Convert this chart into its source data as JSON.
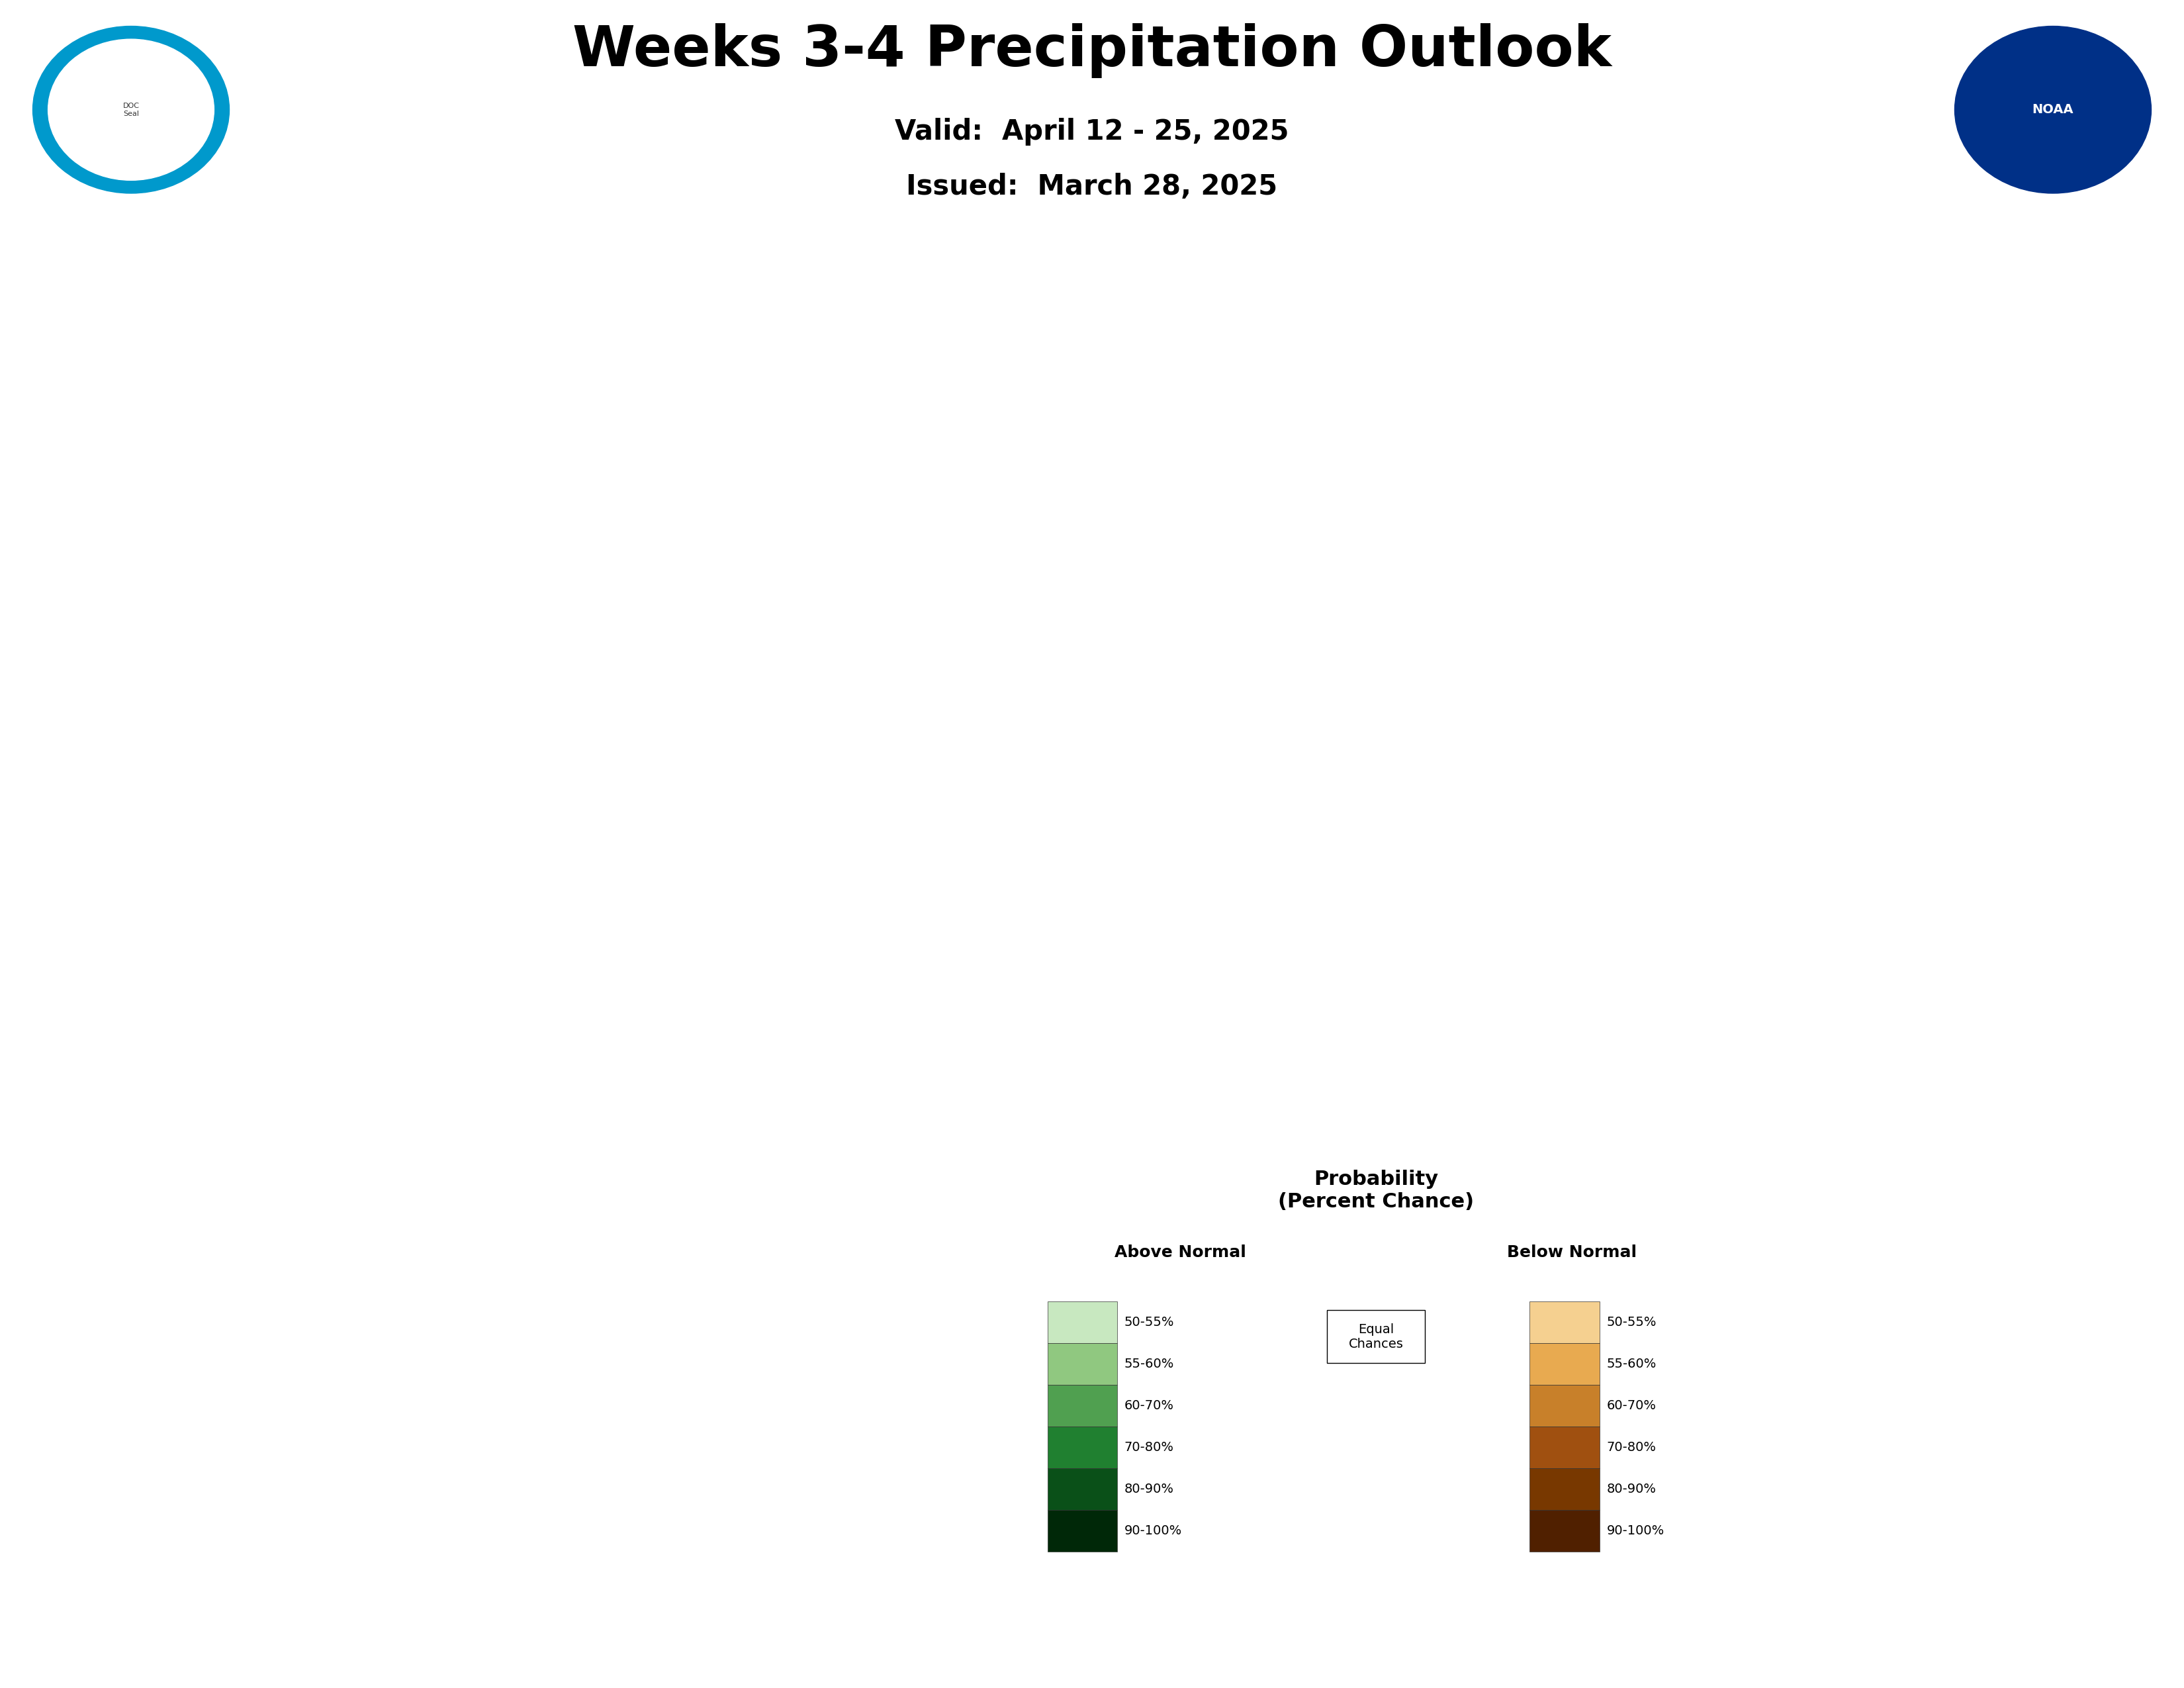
{
  "title": "Weeks 3-4 Precipitation Outlook",
  "valid_line": "Valid:  April 12 - 25, 2025",
  "issued_line": "Issued:  March 28, 2025",
  "title_fontsize": 62,
  "subtitle_fontsize": 30,
  "background_color": "#ffffff",
  "colors": {
    "below_55": "#f5d090",
    "below_60": "#e8aa50",
    "below_70": "#c8802a",
    "below_80": "#a05010",
    "below_90": "#783800",
    "below_100": "#502000",
    "above_55": "#c8e8c0",
    "above_60": "#90c880",
    "above_70": "#50a050",
    "above_80": "#208030",
    "above_90": "#0a5018",
    "above_100": "#002808",
    "equal_chances": "#ffffff",
    "outline": "#555555"
  },
  "labels": {
    "below_label": "Below",
    "above_label": "Above",
    "ec_label": "Equal\nChances"
  },
  "legend": {
    "title": "Probability\n(Percent Chance)",
    "above_header": "Above Normal",
    "below_header": "Below Normal",
    "ec_label": "Equal\nChances",
    "levels": [
      "50-55%",
      "55-60%",
      "60-70%",
      "70-80%",
      "80-90%",
      "90-100%"
    ],
    "above_colors": [
      "#c8e8c0",
      "#90c880",
      "#50a050",
      "#208030",
      "#0a5018",
      "#002808"
    ],
    "below_colors": [
      "#f5d090",
      "#e8aa50",
      "#c8802a",
      "#a05010",
      "#783800",
      "#502000"
    ]
  }
}
